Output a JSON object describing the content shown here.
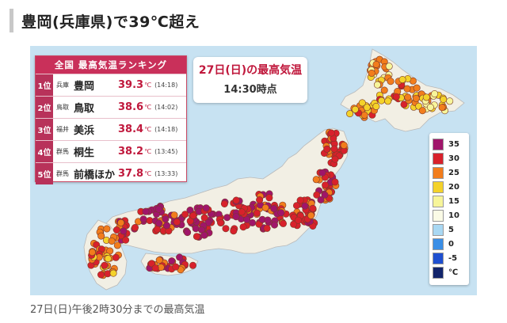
{
  "headline": "豊岡(兵庫県)で39℃超え",
  "caption": "27日(日)午後2時30分までの最高気温",
  "map": {
    "title_line1": "27日(日)の最高気温",
    "title_line2": "14:30時点",
    "ranking": {
      "title": "全国 最高気温ランキング",
      "unit": "℃",
      "rows": [
        {
          "rank": "1位",
          "pref": "兵庫",
          "city": "豊岡",
          "value": "39.3",
          "time": "(14:18)"
        },
        {
          "rank": "2位",
          "pref": "鳥取",
          "city": "鳥取",
          "value": "38.6",
          "time": "(14:02)"
        },
        {
          "rank": "3位",
          "pref": "福井",
          "city": "美浜",
          "value": "38.4",
          "time": "(14:18)"
        },
        {
          "rank": "4位",
          "pref": "群馬",
          "city": "桐生",
          "value": "38.2",
          "time": "(13:45)"
        },
        {
          "rank": "5位",
          "pref": "群馬",
          "city": "前橋ほか",
          "value": "37.8",
          "time": "(13:33)"
        }
      ]
    },
    "legend": [
      {
        "label": "35",
        "color": "#a0156a"
      },
      {
        "label": "30",
        "color": "#d8212b"
      },
      {
        "label": "25",
        "color": "#f27d1c"
      },
      {
        "label": "20",
        "color": "#f4d22a"
      },
      {
        "label": "15",
        "color": "#f7f59a"
      },
      {
        "label": "10",
        "color": "#fbfbe6"
      },
      {
        "label": "5",
        "color": "#a9d8f3"
      },
      {
        "label": "0",
        "color": "#3a8ee6"
      },
      {
        "label": "-5",
        "color": "#1e4fd0"
      },
      {
        "label": "℃",
        "color": "#12246b"
      }
    ]
  }
}
